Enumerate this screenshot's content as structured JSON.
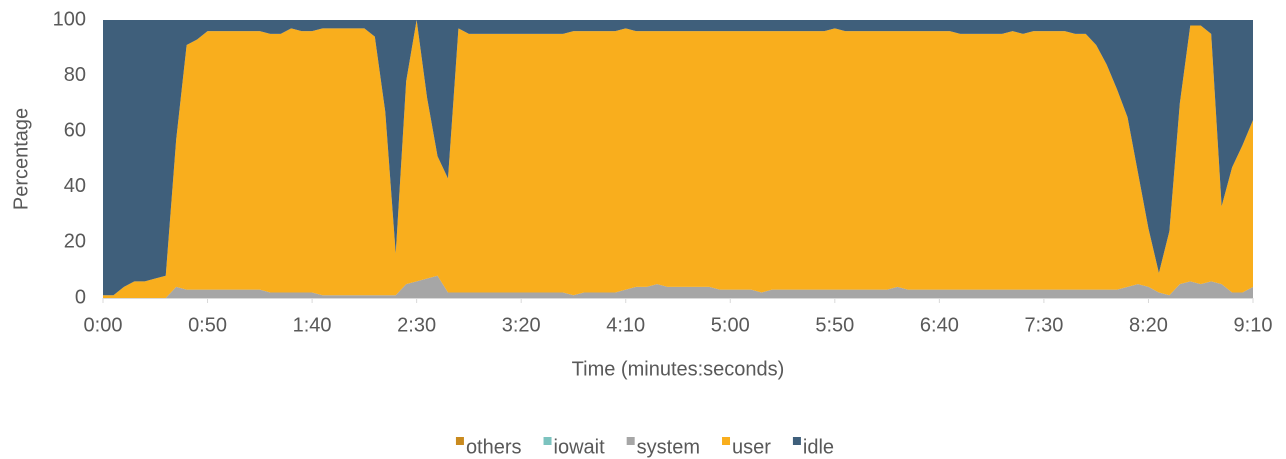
{
  "chart_data": {
    "type": "stacked_area",
    "ylabel": "Percentage",
    "xlabel": "Time (minutes:seconds)",
    "xlim": [
      0,
      550
    ],
    "xticks": [
      {
        "value": 0,
        "label": "0:00"
      },
      {
        "value": 50,
        "label": "0:50"
      },
      {
        "value": 100,
        "label": "1:40"
      },
      {
        "value": 150,
        "label": "2:30"
      },
      {
        "value": 200,
        "label": "3:20"
      },
      {
        "value": 250,
        "label": "4:10"
      },
      {
        "value": 300,
        "label": "5:00"
      },
      {
        "value": 350,
        "label": "5:50"
      },
      {
        "value": 400,
        "label": "6:40"
      },
      {
        "value": 450,
        "label": "7:30"
      },
      {
        "value": 500,
        "label": "8:20"
      },
      {
        "value": 550,
        "label": "9:10"
      }
    ],
    "ylim": [
      0,
      100
    ],
    "yticks": [
      0,
      20,
      40,
      60,
      80,
      100
    ],
    "legend": "bottom",
    "x": [
      0,
      5,
      10,
      15,
      20,
      25,
      30,
      35,
      40,
      45,
      50,
      55,
      60,
      65,
      70,
      75,
      80,
      85,
      90,
      95,
      100,
      105,
      110,
      115,
      120,
      125,
      130,
      135,
      140,
      145,
      150,
      155,
      160,
      165,
      170,
      175,
      180,
      185,
      190,
      195,
      200,
      205,
      210,
      215,
      220,
      225,
      230,
      235,
      240,
      245,
      250,
      255,
      260,
      265,
      270,
      275,
      280,
      285,
      290,
      295,
      300,
      305,
      310,
      315,
      320,
      325,
      330,
      335,
      340,
      345,
      350,
      355,
      360,
      365,
      370,
      375,
      380,
      385,
      390,
      395,
      400,
      405,
      410,
      415,
      420,
      425,
      430,
      435,
      440,
      445,
      450,
      455,
      460,
      465,
      470,
      475,
      480,
      485,
      490,
      495,
      500,
      505,
      510,
      515,
      520,
      525,
      530,
      535,
      540,
      545,
      550
    ],
    "series": [
      {
        "name": "others",
        "color": "#c98a1e",
        "values": [
          0,
          0,
          0,
          0,
          0,
          0,
          0,
          0,
          0,
          0,
          0,
          0,
          0,
          0,
          0,
          0,
          0,
          0,
          0,
          0,
          0,
          0,
          0,
          0,
          0,
          0,
          0,
          0,
          0,
          0,
          0,
          0,
          0,
          0,
          0,
          0,
          0,
          0,
          0,
          0,
          0,
          0,
          0,
          0,
          0,
          0,
          0,
          0,
          0,
          0,
          0,
          0,
          0,
          0,
          0,
          0,
          0,
          0,
          0,
          0,
          0,
          0,
          0,
          0,
          0,
          0,
          0,
          0,
          0,
          0,
          0,
          0,
          0,
          0,
          0,
          0,
          0,
          0,
          0,
          0,
          0,
          0,
          0,
          0,
          0,
          0,
          0,
          0,
          0,
          0,
          0,
          0,
          0,
          0,
          0,
          0,
          0,
          0,
          0,
          0,
          0,
          0,
          0,
          0,
          0,
          0,
          0,
          0,
          0,
          0,
          0
        ]
      },
      {
        "name": "iowait",
        "color": "#7cc3bf",
        "values": [
          0,
          0,
          0,
          0,
          0,
          0,
          0,
          0,
          0,
          0,
          0,
          0,
          0,
          0,
          0,
          0,
          0,
          0,
          0,
          0,
          0,
          0,
          0,
          0,
          0,
          0,
          0,
          0,
          0,
          0,
          0,
          0,
          0,
          0,
          0,
          0,
          0,
          0,
          0,
          0,
          0,
          0,
          0,
          0,
          0,
          0,
          0,
          0,
          0,
          0,
          0,
          0,
          0,
          0,
          0,
          0,
          0,
          0,
          0,
          0,
          0,
          0,
          0,
          0,
          0,
          0,
          0,
          0,
          0,
          0,
          0,
          0,
          0,
          0,
          0,
          0,
          0,
          0,
          0,
          0,
          0,
          0,
          0,
          0,
          0,
          0,
          0,
          0,
          0,
          0,
          0,
          0,
          0,
          0,
          0,
          0,
          0,
          0,
          0,
          0,
          0,
          0,
          0,
          0,
          0,
          0,
          0,
          0,
          0,
          0,
          0
        ]
      },
      {
        "name": "system",
        "color": "#a6a6a6",
        "values": [
          0,
          0,
          0,
          0,
          0,
          0,
          0,
          4,
          3,
          3,
          3,
          3,
          3,
          3,
          3,
          3,
          2,
          2,
          2,
          2,
          2,
          1,
          1,
          1,
          1,
          1,
          1,
          1,
          1,
          5,
          6,
          7,
          8,
          2,
          2,
          2,
          2,
          2,
          2,
          2,
          2,
          2,
          2,
          2,
          2,
          1,
          2,
          2,
          2,
          2,
          3,
          4,
          4,
          5,
          4,
          4,
          4,
          4,
          4,
          3,
          3,
          3,
          3,
          2,
          3,
          3,
          3,
          3,
          3,
          3,
          3,
          3,
          3,
          3,
          3,
          3,
          4,
          3,
          3,
          3,
          3,
          3,
          3,
          3,
          3,
          3,
          3,
          3,
          3,
          3,
          3,
          3,
          3,
          3,
          3,
          3,
          3,
          3,
          4,
          5,
          4,
          2,
          1,
          5,
          6,
          5,
          6,
          5,
          2,
          2,
          4
        ]
      },
      {
        "name": "user",
        "color": "#f9ae1d",
        "values": [
          1,
          1,
          4,
          6,
          6,
          7,
          8,
          53,
          88,
          90,
          93,
          93,
          93,
          93,
          93,
          93,
          93,
          93,
          95,
          94,
          94,
          96,
          96,
          96,
          96,
          96,
          93,
          66,
          15,
          73,
          94,
          65,
          43,
          41,
          95,
          93,
          93,
          93,
          93,
          93,
          93,
          93,
          93,
          93,
          93,
          95,
          94,
          94,
          94,
          94,
          94,
          92,
          92,
          91,
          92,
          92,
          92,
          92,
          92,
          93,
          93,
          93,
          93,
          94,
          93,
          93,
          93,
          93,
          93,
          93,
          94,
          93,
          93,
          93,
          93,
          93,
          92,
          93,
          93,
          93,
          93,
          93,
          92,
          92,
          92,
          92,
          92,
          93,
          92,
          93,
          93,
          93,
          93,
          92,
          92,
          88,
          81,
          72,
          61,
          40,
          21,
          7,
          23,
          65,
          92,
          93,
          89,
          28,
          45,
          53,
          60
        ]
      },
      {
        "name": "idle",
        "color": "#3f5f7b",
        "values": [
          99,
          99,
          96,
          94,
          94,
          93,
          92,
          43,
          9,
          7,
          4,
          4,
          4,
          4,
          4,
          4,
          5,
          5,
          3,
          4,
          4,
          3,
          3,
          3,
          3,
          3,
          6,
          33,
          84,
          22,
          0,
          28,
          49,
          57,
          3,
          5,
          5,
          5,
          5,
          5,
          5,
          5,
          5,
          5,
          5,
          4,
          4,
          4,
          4,
          4,
          3,
          4,
          4,
          4,
          4,
          4,
          4,
          4,
          4,
          4,
          4,
          4,
          4,
          4,
          4,
          4,
          4,
          4,
          4,
          4,
          3,
          4,
          4,
          4,
          4,
          4,
          4,
          4,
          4,
          4,
          4,
          4,
          5,
          5,
          5,
          5,
          5,
          4,
          5,
          4,
          4,
          4,
          4,
          5,
          5,
          9,
          16,
          25,
          35,
          55,
          75,
          91,
          76,
          30,
          2,
          2,
          5,
          67,
          53,
          45,
          36
        ]
      }
    ]
  }
}
